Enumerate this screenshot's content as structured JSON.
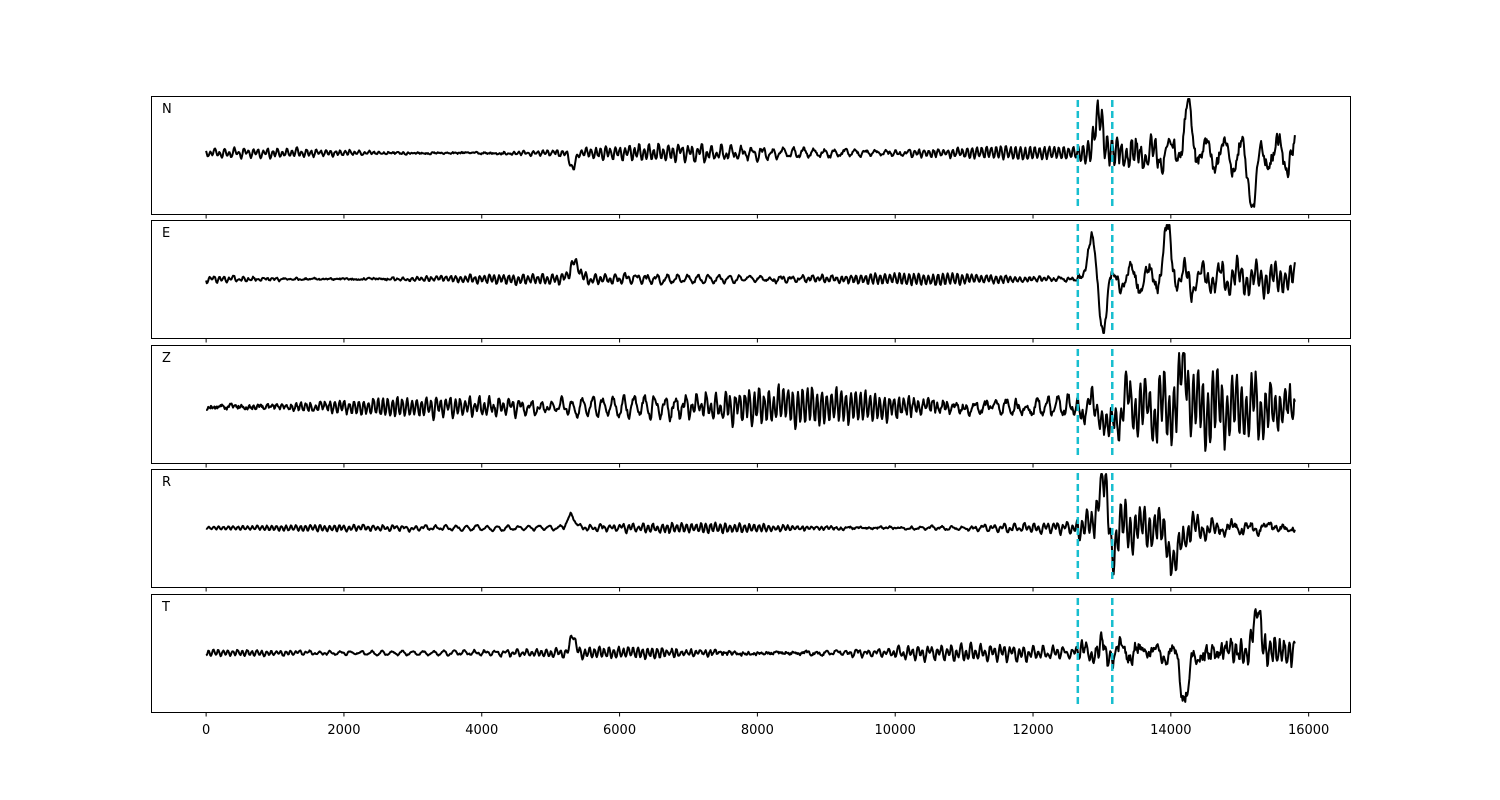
{
  "chart_data": {
    "type": "line",
    "title": "",
    "xlabel": "",
    "ylabel": "",
    "xlim": [
      -800,
      16600
    ],
    "xticks": [
      0,
      2000,
      4000,
      6000,
      8000,
      10000,
      12000,
      14000,
      16000
    ],
    "xtick_labels": [
      "0",
      "2000",
      "4000",
      "6000",
      "8000",
      "10000",
      "12000",
      "14000",
      "16000"
    ],
    "samples": 15800,
    "grid": false,
    "trace_color": "#000000",
    "pick_color": "#17becf",
    "picks": [
      12650,
      13150
    ],
    "panels": [
      {
        "label": "N",
        "ylim": [
          -1.3,
          1.3
        ],
        "envelope": [
          [
            0,
            0.12
          ],
          [
            5000,
            0.14
          ],
          [
            6500,
            0.22
          ],
          [
            8000,
            0.25
          ],
          [
            10000,
            0.22
          ],
          [
            12600,
            0.2
          ],
          [
            12800,
            0.45
          ],
          [
            13000,
            0.7
          ],
          [
            14000,
            0.85
          ],
          [
            15000,
            1.0
          ],
          [
            15800,
            0.8
          ]
        ],
        "features": [
          [
            5320,
            -0.35,
            60
          ],
          [
            12950,
            0.8,
            90
          ],
          [
            14250,
            1.0,
            80
          ],
          [
            15200,
            -1.1,
            90
          ]
        ]
      },
      {
        "label": "E",
        "ylim": [
          -1.3,
          1.3
        ],
        "envelope": [
          [
            0,
            0.12
          ],
          [
            5000,
            0.15
          ],
          [
            6500,
            0.18
          ],
          [
            8000,
            0.2
          ],
          [
            10000,
            0.18
          ],
          [
            12600,
            0.18
          ],
          [
            12800,
            0.55
          ],
          [
            13000,
            0.75
          ],
          [
            14000,
            0.8
          ],
          [
            15000,
            0.55
          ],
          [
            15800,
            0.4
          ]
        ],
        "features": [
          [
            5350,
            0.4,
            90
          ],
          [
            12850,
            1.0,
            90
          ],
          [
            13000,
            -1.1,
            80
          ],
          [
            13950,
            1.0,
            90
          ]
        ]
      },
      {
        "label": "Z",
        "ylim": [
          -1.3,
          1.3
        ],
        "envelope": [
          [
            0,
            0.3
          ],
          [
            5000,
            0.3
          ],
          [
            6000,
            0.5
          ],
          [
            8000,
            0.6
          ],
          [
            10000,
            0.55
          ],
          [
            12600,
            0.5
          ],
          [
            12800,
            0.6
          ],
          [
            13200,
            0.9
          ],
          [
            14500,
            1.0
          ],
          [
            15800,
            1.0
          ]
        ],
        "features": [
          [
            13100,
            -0.9,
            60
          ],
          [
            14200,
            1.1,
            70
          ]
        ]
      },
      {
        "label": "R",
        "ylim": [
          -1.3,
          1.3
        ],
        "envelope": [
          [
            0,
            0.08
          ],
          [
            5000,
            0.12
          ],
          [
            6500,
            0.15
          ],
          [
            8000,
            0.15
          ],
          [
            10000,
            0.13
          ],
          [
            12600,
            0.15
          ],
          [
            12800,
            0.4
          ],
          [
            13000,
            0.6
          ],
          [
            14000,
            0.7
          ],
          [
            15000,
            0.5
          ],
          [
            15800,
            0.4
          ]
        ],
        "features": [
          [
            5300,
            0.3,
            80
          ],
          [
            13000,
            1.1,
            90
          ],
          [
            14050,
            -1.0,
            80
          ],
          [
            13150,
            -0.5,
            70
          ]
        ]
      },
      {
        "label": "T",
        "ylim": [
          -1.3,
          1.3
        ],
        "envelope": [
          [
            0,
            0.1
          ],
          [
            5000,
            0.12
          ],
          [
            6500,
            0.2
          ],
          [
            8000,
            0.22
          ],
          [
            10000,
            0.2
          ],
          [
            12600,
            0.2
          ],
          [
            12800,
            0.55
          ],
          [
            13000,
            0.75
          ],
          [
            14000,
            0.9
          ],
          [
            15000,
            1.0
          ],
          [
            15800,
            0.8
          ]
        ],
        "features": [
          [
            5320,
            0.45,
            50
          ],
          [
            14200,
            -1.1,
            80
          ],
          [
            15250,
            1.1,
            80
          ]
        ]
      }
    ]
  }
}
